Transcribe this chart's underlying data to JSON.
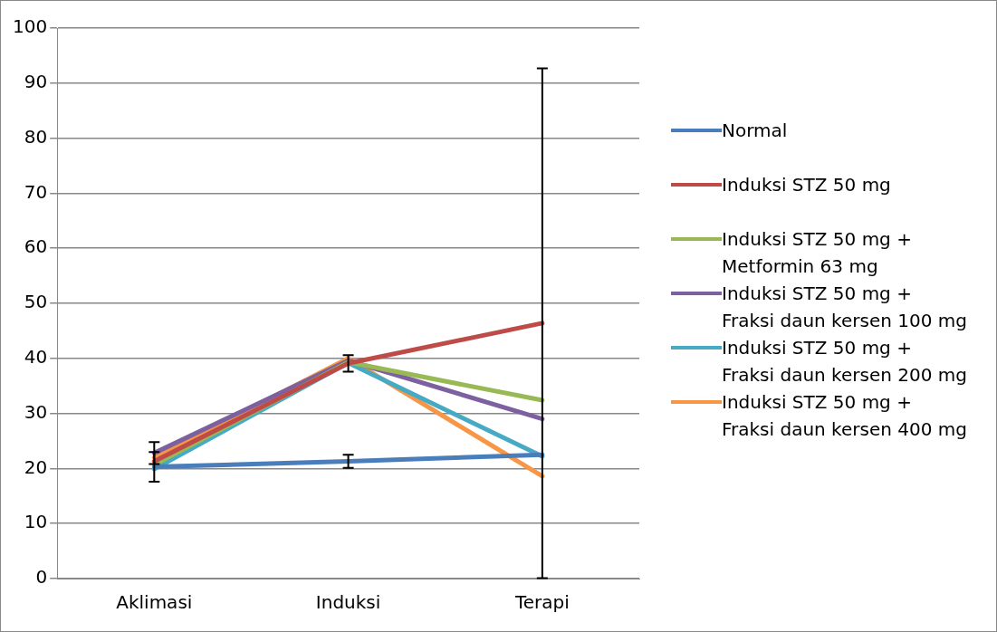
{
  "chart_data": {
    "type": "line",
    "categories": [
      "Aklimasi",
      "Induksi",
      "Terapi"
    ],
    "series": [
      {
        "name": "Normal",
        "color": "#4a7ebb",
        "values": [
          20.3,
          21.3,
          22.5
        ],
        "errors": [
          2.7,
          1.2,
          null
        ]
      },
      {
        "name": "Induksi STZ 50 mg",
        "color": "#be4b48",
        "values": [
          21.3,
          39.1,
          46.4
        ],
        "errors": [
          null,
          1.5,
          46.3
        ]
      },
      {
        "name": "Induksi STZ 50 mg + Metformin 63 mg",
        "color": "#98b954",
        "values": [
          20.7,
          39.3,
          32.4
        ],
        "errors": [
          null,
          null,
          null
        ]
      },
      {
        "name": "Induksi STZ 50 mg + Fraksi daun kersen 100 mg",
        "color": "#7d60a0",
        "values": [
          22.8,
          39.6,
          29.0
        ],
        "errors": [
          2.0,
          null,
          null
        ]
      },
      {
        "name": "Induksi STZ 50 mg + Fraksi daun kersen 200 mg",
        "color": "#46aac5",
        "values": [
          19.9,
          39.2,
          22.2
        ],
        "errors": [
          null,
          null,
          null
        ]
      },
      {
        "name": "Induksi STZ 50 mg + Fraksi daun kersen 400 mg",
        "color": "#f79646",
        "values": [
          22.0,
          40.0,
          18.6
        ],
        "errors": [
          null,
          null,
          null
        ]
      }
    ],
    "ylim": [
      0,
      100
    ],
    "yticks": [
      0,
      10,
      20,
      30,
      40,
      50,
      60,
      70,
      80,
      90,
      100
    ],
    "grid": "y",
    "legend": "right",
    "marker": "none"
  }
}
